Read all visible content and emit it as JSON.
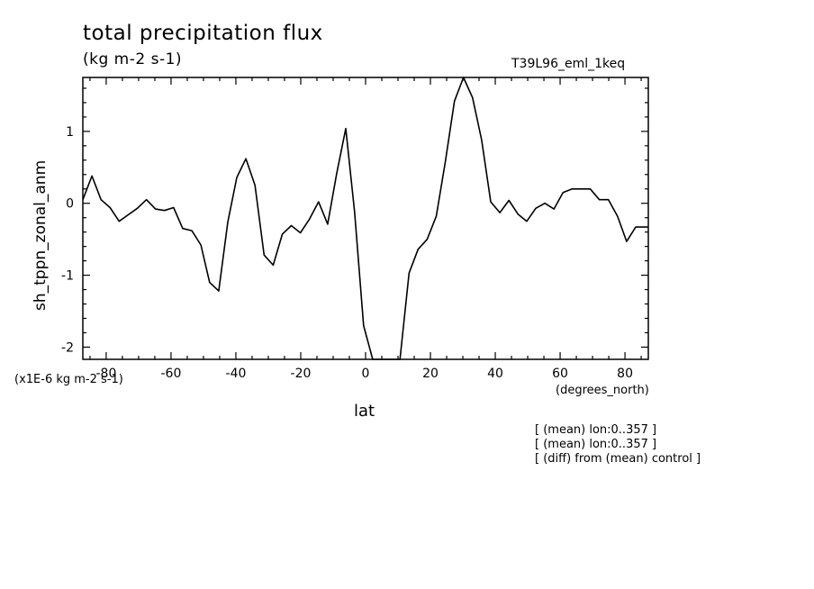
{
  "chart_data": {
    "type": "line",
    "title": "total precipitation flux",
    "subtitle": "(kg m-2 s-1)",
    "run_name": "T39L96_eml_1keq",
    "xlabel": "lat",
    "x_units": "(degrees_north)",
    "ylabel": "sh_tppn_zonal_anm",
    "y_scale_label": "(x1E-6 kg m-2 s-1)",
    "xlim": [
      -87.2,
      87.2
    ],
    "ylim": [
      -2.17,
      1.75
    ],
    "xticks": [
      -80,
      -60,
      -40,
      -20,
      0,
      20,
      40,
      60,
      80
    ],
    "xtick_labels": [
      "-80",
      "-60",
      "-40",
      "-20",
      "0",
      "20",
      "40",
      "60",
      "80"
    ],
    "yticks": [
      -2,
      -1,
      0,
      1
    ],
    "ytick_labels": [
      "-2",
      "-1",
      "0",
      "1"
    ],
    "grid": false,
    "series": [
      {
        "line_color": "#000000",
        "x": [
          -87.2,
          -84.4,
          -81.6,
          -78.8,
          -76.0,
          -73.2,
          -70.4,
          -67.6,
          -64.8,
          -62.0,
          -59.2,
          -56.4,
          -53.6,
          -50.8,
          -48.1,
          -45.3,
          -42.5,
          -39.7,
          -36.9,
          -34.1,
          -31.3,
          -28.5,
          -25.7,
          -22.9,
          -20.1,
          -17.3,
          -14.5,
          -11.7,
          -8.9,
          -6.1,
          -3.4,
          -0.6,
          2.2,
          5.0,
          7.8,
          10.6,
          13.4,
          16.2,
          19.0,
          21.8,
          24.6,
          27.4,
          30.2,
          33.0,
          35.8,
          38.6,
          41.4,
          44.2,
          47.0,
          49.7,
          52.5,
          55.3,
          58.1,
          60.9,
          63.7,
          66.5,
          69.3,
          72.1,
          74.9,
          77.7,
          80.5,
          83.3,
          86.1,
          87.2
        ],
        "y": [
          0.05,
          0.38,
          0.05,
          -0.06,
          -0.25,
          -0.16,
          -0.07,
          0.05,
          -0.08,
          -0.1,
          -0.06,
          -0.35,
          -0.38,
          -0.58,
          -1.1,
          -1.22,
          -0.26,
          0.36,
          0.62,
          0.25,
          -0.72,
          -0.86,
          -0.43,
          -0.31,
          -0.41,
          -0.22,
          0.02,
          -0.29,
          0.42,
          1.04,
          -0.12,
          -1.7,
          -2.17,
          -2.17,
          -2.17,
          -2.17,
          -0.97,
          -0.64,
          -0.5,
          -0.18,
          0.58,
          1.42,
          1.75,
          1.47,
          0.88,
          0.02,
          -0.13,
          0.04,
          -0.15,
          -0.25,
          -0.07,
          0.0,
          -0.08,
          0.15,
          0.2,
          0.2,
          0.2,
          0.05,
          0.05,
          -0.18,
          -0.53,
          -0.33,
          -0.33,
          -0.33
        ]
      }
    ]
  },
  "notes": [
    "[ (mean) lon:0..357 ]",
    "[ (mean) lon:0..357 ]",
    "[ (diff) from (mean) control ]"
  ]
}
